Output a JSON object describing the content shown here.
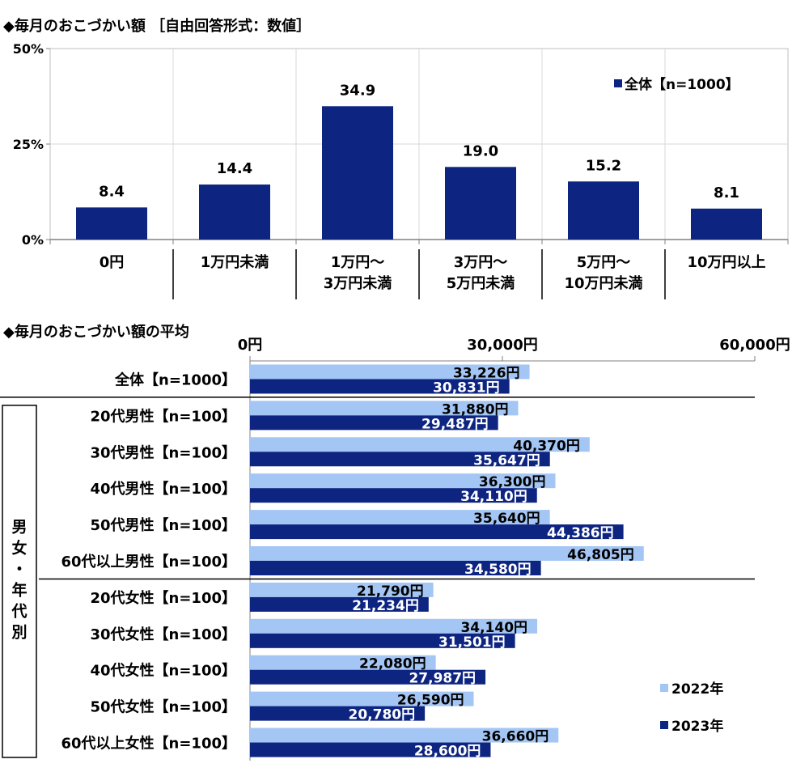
{
  "chart_data": [
    {
      "type": "bar",
      "title": "◆毎月のおこづかい額 ［自由回答形式：数値］",
      "categories": [
        [
          "0円"
        ],
        [
          "1万円未満"
        ],
        [
          "1万円～",
          "3万円未満"
        ],
        [
          "3万円～",
          "5万円未満"
        ],
        [
          "5万円～",
          "10万円未満"
        ],
        [
          "10万円以上"
        ]
      ],
      "series": [
        {
          "name": "全体【n=1000】",
          "values": [
            8.4,
            14.4,
            34.9,
            19.0,
            15.2,
            8.1
          ]
        }
      ],
      "value_labels": [
        "8.4",
        "14.4",
        "34.9",
        "19.0",
        "15.2",
        "8.1"
      ],
      "ylim": [
        0,
        50
      ],
      "yticks": [
        0,
        25,
        50
      ],
      "ytick_labels": [
        "0%",
        "25%",
        "50%"
      ],
      "colors": {
        "bar": "#0d2481"
      }
    },
    {
      "type": "bar",
      "orientation": "horizontal",
      "title": "◆毎月のおこづかい額の平均",
      "xlim": [
        0,
        60000
      ],
      "xticks": [
        0,
        30000,
        60000
      ],
      "xtick_labels": [
        "0円",
        "30,000円",
        "60,000円"
      ],
      "group_label": "男女・年代別",
      "categories": [
        "全体【n=1000】",
        "20代男性【n=100】",
        "30代男性【n=100】",
        "40代男性【n=100】",
        "50代男性【n=100】",
        "60代以上男性【n=100】",
        "20代女性【n=100】",
        "30代女性【n=100】",
        "40代女性【n=100】",
        "50代女性【n=100】",
        "60代以上女性【n=100】"
      ],
      "series": [
        {
          "name": "2022年",
          "color": "#a4c6f4",
          "values": [
            33226,
            31880,
            40370,
            36300,
            35640,
            46805,
            21790,
            34140,
            22080,
            26590,
            36660
          ],
          "labels": [
            "33,226円",
            "31,880円",
            "40,370円",
            "36,300円",
            "35,640円",
            "46,805円",
            "21,790円",
            "34,140円",
            "22,080円",
            "26,590円",
            "36,660円"
          ]
        },
        {
          "name": "2023年",
          "color": "#0d2481",
          "values": [
            30831,
            29487,
            35647,
            34110,
            44386,
            34580,
            21234,
            31501,
            27987,
            20780,
            28600
          ],
          "labels": [
            "30,831円",
            "29,487円",
            "35,647円",
            "34,110円",
            "44,386円",
            "34,580円",
            "21,234円",
            "31,501円",
            "27,987円",
            "20,780円",
            "28,600円"
          ]
        }
      ]
    }
  ]
}
